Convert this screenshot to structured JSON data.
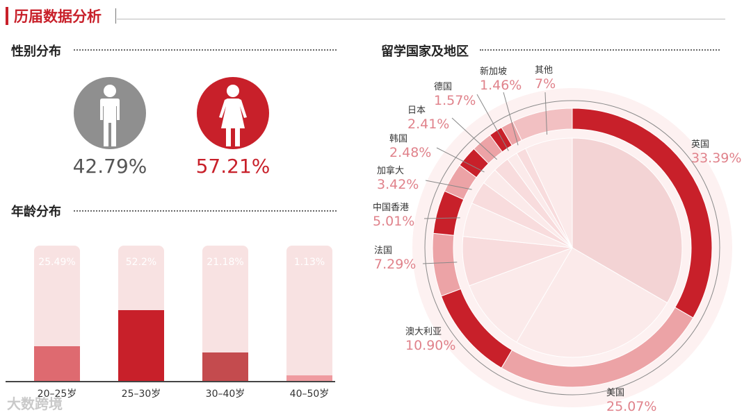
{
  "header": {
    "title": "历届数据分析"
  },
  "gender": {
    "title": "性别分布",
    "male": {
      "value": "42.79%",
      "color": "#8f8f8f"
    },
    "female": {
      "value": "57.21%",
      "color": "#c8202a"
    }
  },
  "age": {
    "title": "年龄分布",
    "categories": [
      "20–25岁",
      "25–30岁",
      "30–40岁",
      "40–50岁"
    ],
    "labels": [
      "25.49%",
      "52.2%",
      "21.18%",
      "1.13%"
    ],
    "values": [
      25.49,
      52.2,
      21.18,
      1.13
    ],
    "colors": [
      "#de6a70",
      "#c8202a",
      "#c44b4e",
      "#ef9ba0"
    ],
    "track_color": "#f8e2e2"
  },
  "destinations": {
    "title": "留学国家及地区"
  },
  "chart_data": [
    {
      "type": "bar",
      "title": "年龄分布",
      "categories": [
        "20–25岁",
        "25–30岁",
        "30–40岁",
        "40–50岁"
      ],
      "values": [
        25.49,
        52.2,
        21.18,
        1.13
      ],
      "ylim": [
        0,
        100
      ],
      "grid": false
    },
    {
      "type": "pie",
      "title": "留学国家及地区",
      "categories": [
        "英国",
        "美国",
        "澳大利亚",
        "法国",
        "中国香港",
        "加拿大",
        "韩国",
        "日本",
        "德国",
        "新加坡",
        "其他"
      ],
      "value_labels": [
        "33.39%",
        "25.07%",
        "10.90%",
        "7.29%",
        "5.01%",
        "3.42%",
        "2.48%",
        "2.41%",
        "1.57%",
        "1.46%",
        "7%"
      ],
      "values": [
        33.39,
        25.07,
        10.9,
        7.29,
        5.01,
        3.42,
        2.48,
        2.41,
        1.57,
        1.46,
        7
      ],
      "colors": [
        "#c8202a",
        "#eca3a6",
        "#c8202a",
        "#eca3a6",
        "#c8202a",
        "#eca3a6",
        "#c8202a",
        "#eca3a6",
        "#c8202a",
        "#eca3a6",
        "#f2c0c2"
      ],
      "inner_colors": [
        "#f3d3d4",
        "#fbeaea",
        "#fbeaea",
        "#f8dcdd",
        "#fbeaea",
        "#f8dcdd",
        "#fbeaea",
        "#f8dcdd",
        "#fbeaea",
        "#f8dcdd",
        "#fbeaea"
      ]
    }
  ],
  "watermark": "大数跨境"
}
